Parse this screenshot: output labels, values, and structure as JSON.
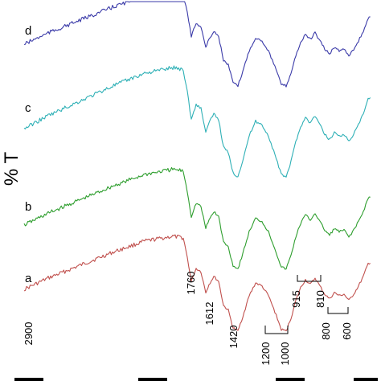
{
  "chart_data": {
    "type": "line",
    "title": "",
    "xlabel": "",
    "ylabel": "% T",
    "x_axis": "wavenumber, reversed (high to low)",
    "series": [
      {
        "name": "a",
        "color": "#c0504d"
      },
      {
        "name": "b",
        "color": "#2e9e2e"
      },
      {
        "name": "c",
        "color": "#2eb0b6"
      },
      {
        "name": "d",
        "color": "#3a3aa8"
      }
    ],
    "annotations": [
      {
        "text": "2900"
      },
      {
        "text": "1760"
      },
      {
        "text": "1612"
      },
      {
        "text": "1420"
      },
      {
        "text": "1200"
      },
      {
        "text": "1000"
      },
      {
        "text": "915"
      },
      {
        "text": "810"
      },
      {
        "text": "800"
      },
      {
        "text": "600"
      }
    ]
  }
}
